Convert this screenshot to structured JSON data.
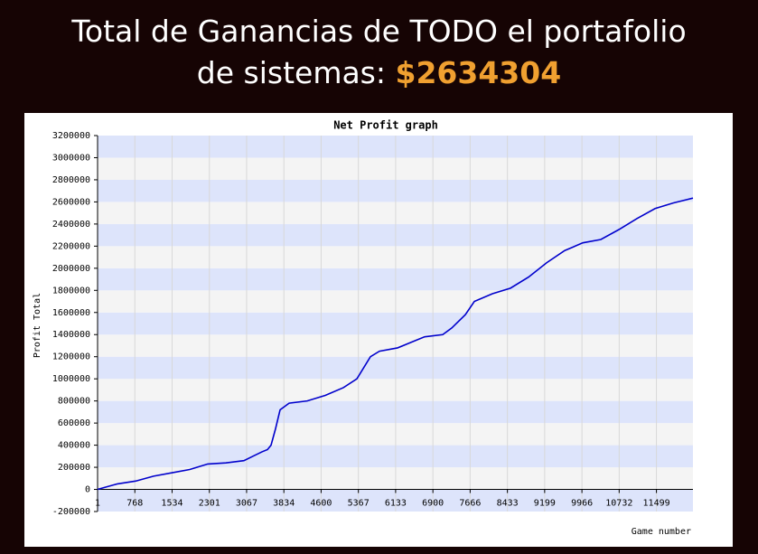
{
  "header": {
    "text": "Total de Ganancias de TODO el portafolio de sistemas:",
    "total": "$2634304"
  },
  "chart_data": {
    "type": "line",
    "title": "Net Profit graph",
    "x_label": "Game number",
    "y_label": "Profit Total",
    "x": [
      1,
      410,
      782,
      1153,
      1525,
      1897,
      2269,
      2640,
      3012,
      3198,
      3384,
      3496,
      3570,
      3663,
      3756,
      3942,
      4314,
      4686,
      5057,
      5336,
      5615,
      5801,
      6173,
      6452,
      6730,
      7102,
      7288,
      7567,
      7753,
      8125,
      8496,
      8868,
      9240,
      9612,
      9984,
      10355,
      10727,
      11099,
      11471,
      11843,
      12250
    ],
    "values": [
      0,
      50000,
      75000,
      120000,
      150000,
      180000,
      230000,
      240000,
      260000,
      300000,
      340000,
      360000,
      400000,
      550000,
      720000,
      780000,
      800000,
      850000,
      920000,
      1000000,
      1200000,
      1250000,
      1280000,
      1330000,
      1380000,
      1400000,
      1460000,
      1580000,
      1700000,
      1770000,
      1820000,
      1920000,
      2050000,
      2160000,
      2230000,
      2260000,
      2350000,
      2450000,
      2540000,
      2590000,
      2634304
    ],
    "color": "#0000cc",
    "xlim": [
      1,
      12250
    ],
    "xticks": [
      1,
      768,
      1534,
      2301,
      3067,
      3834,
      4600,
      5367,
      6133,
      6900,
      7666,
      8433,
      9199,
      9966,
      10732,
      11499
    ],
    "ylim": [
      -200000,
      3200000
    ],
    "yticks": [
      -200000,
      0,
      200000,
      400000,
      600000,
      800000,
      1000000,
      1200000,
      1400000,
      1600000,
      1800000,
      2000000,
      2200000,
      2400000,
      2600000,
      2800000,
      3000000,
      3200000
    ],
    "grid": true,
    "band_colors": [
      "#dde4fb",
      "#f4f4f4"
    ]
  }
}
